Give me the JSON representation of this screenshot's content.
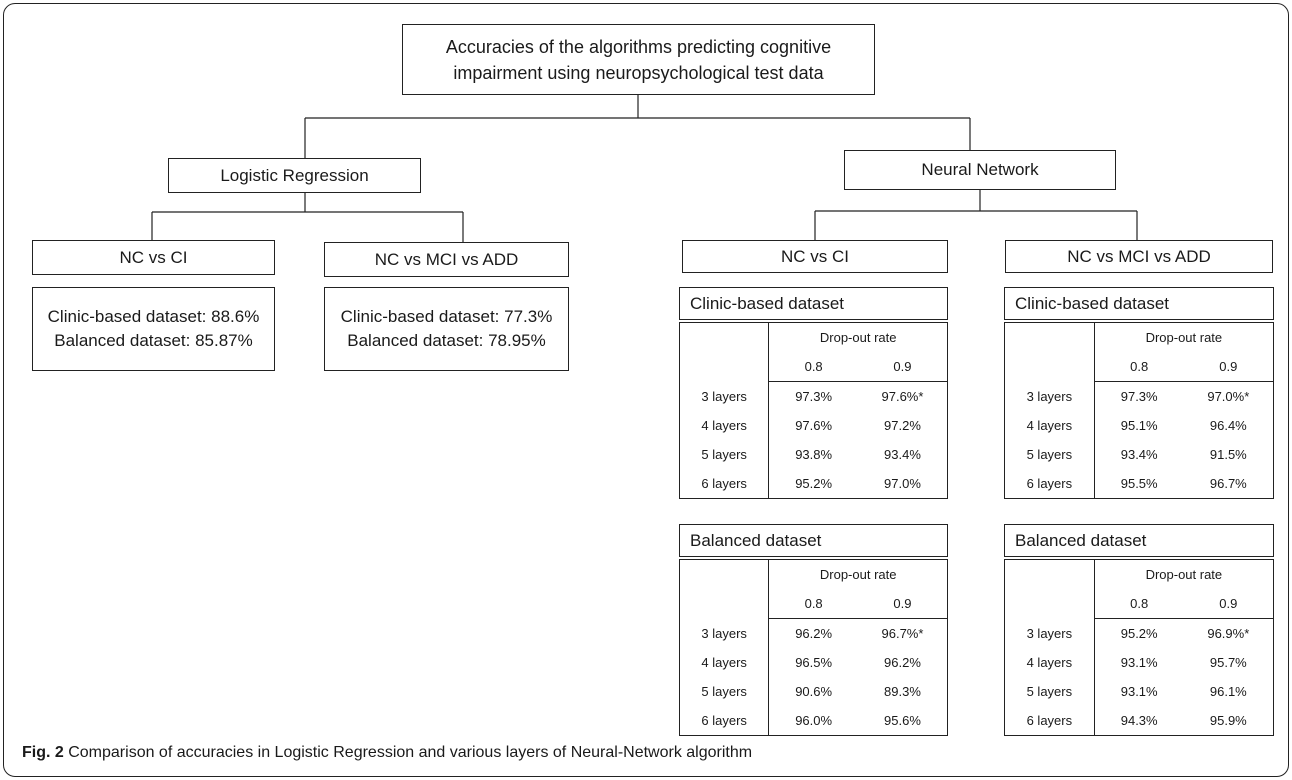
{
  "title_box": {
    "line1": "Accuracies of the algorithms predicting cognitive",
    "line2": "impairment using neuropsychological test data"
  },
  "logistic": {
    "label": "Logistic Regression",
    "nc_ci": {
      "label": "NC vs CI",
      "line1": "Clinic-based dataset: 88.6%",
      "line2": "Balanced dataset: 85.87%"
    },
    "nc_mci_add": {
      "label": "NC vs MCI vs ADD",
      "line1": "Clinic-based dataset: 77.3%",
      "line2": "Balanced dataset: 78.95%"
    }
  },
  "neural": {
    "label": "Neural Network",
    "groups": [
      {
        "label": "NC vs CI",
        "tables": [
          {
            "title": "Clinic-based dataset",
            "header": "Drop-out rate",
            "cols": [
              "0.8",
              "0.9"
            ],
            "rows": [
              {
                "label": "3 layers",
                "v1": "97.3%",
                "v2": "97.6%*"
              },
              {
                "label": "4 layers",
                "v1": "97.6%",
                "v2": "97.2%"
              },
              {
                "label": "5 layers",
                "v1": "93.8%",
                "v2": "93.4%"
              },
              {
                "label": "6 layers",
                "v1": "95.2%",
                "v2": "97.0%"
              }
            ]
          },
          {
            "title": "Balanced dataset",
            "header": "Drop-out rate",
            "cols": [
              "0.8",
              "0.9"
            ],
            "rows": [
              {
                "label": "3 layers",
                "v1": "96.2%",
                "v2": "96.7%*"
              },
              {
                "label": "4 layers",
                "v1": "96.5%",
                "v2": "96.2%"
              },
              {
                "label": "5 layers",
                "v1": "90.6%",
                "v2": "89.3%"
              },
              {
                "label": "6 layers",
                "v1": "96.0%",
                "v2": "95.6%"
              }
            ]
          }
        ]
      },
      {
        "label": "NC vs MCI vs ADD",
        "tables": [
          {
            "title": "Clinic-based dataset",
            "header": "Drop-out rate",
            "cols": [
              "0.8",
              "0.9"
            ],
            "rows": [
              {
                "label": "3 layers",
                "v1": "97.3%",
                "v2": "97.0%*"
              },
              {
                "label": "4 layers",
                "v1": "95.1%",
                "v2": "96.4%"
              },
              {
                "label": "5 layers",
                "v1": "93.4%",
                "v2": "91.5%"
              },
              {
                "label": "6 layers",
                "v1": "95.5%",
                "v2": "96.7%"
              }
            ]
          },
          {
            "title": "Balanced dataset",
            "header": "Drop-out rate",
            "cols": [
              "0.8",
              "0.9"
            ],
            "rows": [
              {
                "label": "3 layers",
                "v1": "95.2%",
                "v2": "96.9%*"
              },
              {
                "label": "4 layers",
                "v1": "93.1%",
                "v2": "95.7%"
              },
              {
                "label": "5 layers",
                "v1": "93.1%",
                "v2": "96.1%"
              },
              {
                "label": "6 layers",
                "v1": "94.3%",
                "v2": "95.9%"
              }
            ]
          }
        ]
      }
    ]
  },
  "caption": {
    "label": "Fig. 2",
    "text": " Comparison of accuracies in Logistic Regression and various layers of Neural-Network algorithm"
  }
}
